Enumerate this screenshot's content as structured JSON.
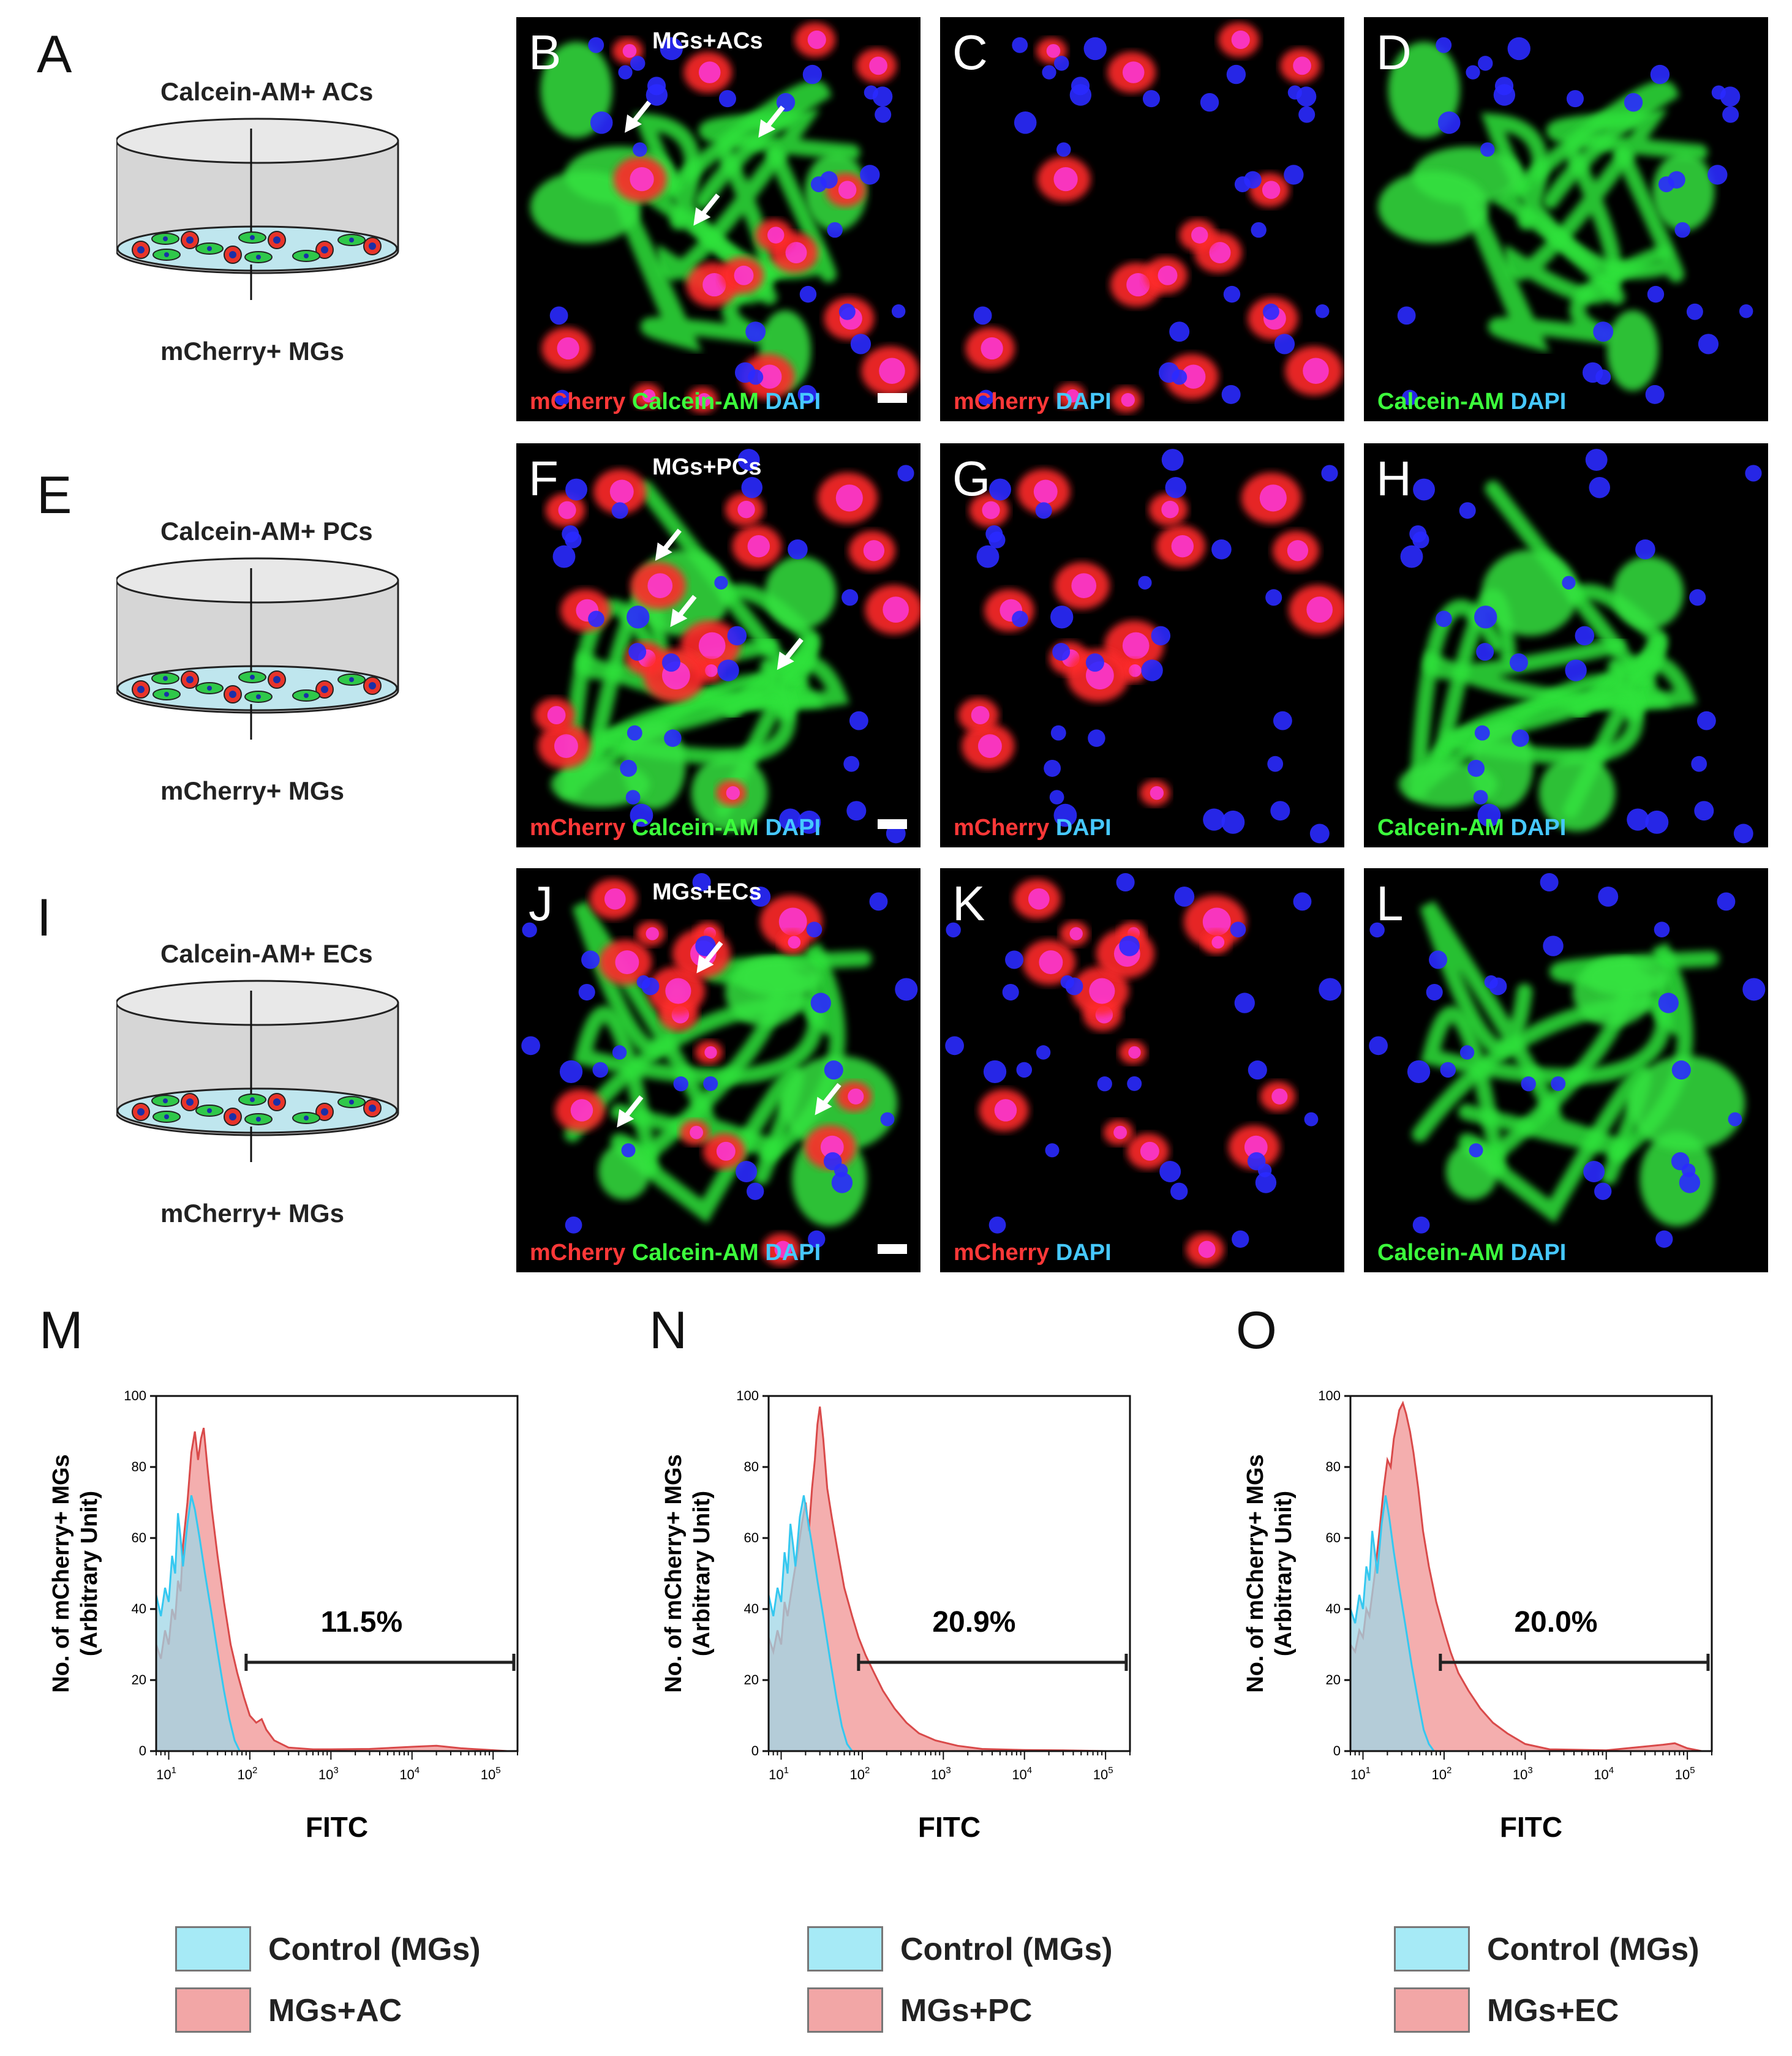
{
  "panel_letters": [
    "A",
    "B",
    "C",
    "D",
    "E",
    "F",
    "G",
    "H",
    "I",
    "J",
    "K",
    "L",
    "M",
    "N",
    "O"
  ],
  "rows": [
    {
      "dish": {
        "top_label": "Calcein-AM+ ACs",
        "bottom_label": "mCherry+ MGs"
      },
      "merge_title": "MGs+ACs",
      "captions": {
        "merge": [
          "mCherry",
          "Calcein-AM",
          "DAPI"
        ],
        "red": [
          "mCherry",
          "DAPI"
        ],
        "green": [
          "Calcein-AM",
          "DAPI"
        ]
      }
    },
    {
      "dish": {
        "top_label": "Calcein-AM+ PCs",
        "bottom_label": "mCherry+ MGs"
      },
      "merge_title": "MGs+PCs",
      "captions": {
        "merge": [
          "mCherry",
          "Calcein-AM",
          "DAPI"
        ],
        "red": [
          "mCherry",
          "DAPI"
        ],
        "green": [
          "Calcein-AM",
          "DAPI"
        ]
      }
    },
    {
      "dish": {
        "top_label": "Calcein-AM+ ECs",
        "bottom_label": "mCherry+ MGs"
      },
      "merge_title": "MGs+ECs",
      "captions": {
        "merge": [
          "mCherry",
          "Calcein-AM",
          "DAPI"
        ],
        "red": [
          "mCherry",
          "DAPI"
        ],
        "green": [
          "Calcein-AM",
          "DAPI"
        ]
      }
    }
  ],
  "colors": {
    "mcherry": "#ff3838",
    "calcein": "#3cff3c",
    "dapi": "#46c8ff",
    "control_fill": "#9fd6e6",
    "control_line": "#35c8f0",
    "sample_fill": "#f2a0a0",
    "sample_line": "#d94a4a"
  },
  "chart_data": [
    {
      "type": "area",
      "panel": "M",
      "xlabel": "FITC",
      "ylabel": "No. of mCherry+ MGs",
      "ylabel_sub": "(Arbitrary Unit)",
      "x_scale": "log",
      "xlim": [
        7,
        200000
      ],
      "ylim": [
        0,
        100
      ],
      "y_ticks": [
        0,
        20,
        40,
        60,
        80,
        100
      ],
      "x_ticks": [
        {
          "base": "10",
          "exp": "1",
          "value": 10
        },
        {
          "base": "10",
          "exp": "2",
          "value": 100
        },
        {
          "base": "10",
          "exp": "3",
          "value": 1000
        },
        {
          "base": "10",
          "exp": "4",
          "value": 10000
        },
        {
          "base": "10",
          "exp": "5",
          "value": 100000
        }
      ],
      "gate": {
        "label": "11.5%",
        "from": 90,
        "to": 180000,
        "y": 25
      },
      "series": [
        {
          "name": "Control (MGs)",
          "key": "control",
          "points": [
            [
              7,
              44
            ],
            [
              8,
              38
            ],
            [
              9,
              46
            ],
            [
              10,
              42
            ],
            [
              11,
              55
            ],
            [
              12,
              50
            ],
            [
              13,
              67
            ],
            [
              14,
              60
            ],
            [
              15,
              52
            ],
            [
              17,
              64
            ],
            [
              19,
              72
            ],
            [
              21,
              68
            ],
            [
              24,
              60
            ],
            [
              28,
              50
            ],
            [
              33,
              40
            ],
            [
              40,
              28
            ],
            [
              48,
              17
            ],
            [
              56,
              9
            ],
            [
              65,
              3
            ],
            [
              75,
              0
            ]
          ]
        },
        {
          "name": "MGs+AC",
          "key": "sample",
          "points": [
            [
              7,
              30
            ],
            [
              8,
              26
            ],
            [
              9,
              34
            ],
            [
              10,
              30
            ],
            [
              11,
              40
            ],
            [
              12,
              37
            ],
            [
              13,
              48
            ],
            [
              14,
              45
            ],
            [
              15,
              58
            ],
            [
              17,
              70
            ],
            [
              19,
              84
            ],
            [
              21,
              90
            ],
            [
              23,
              82
            ],
            [
              25,
              88
            ],
            [
              27,
              91
            ],
            [
              30,
              80
            ],
            [
              34,
              68
            ],
            [
              40,
              55
            ],
            [
              48,
              42
            ],
            [
              58,
              30
            ],
            [
              70,
              22
            ],
            [
              85,
              15
            ],
            [
              100,
              10
            ],
            [
              120,
              8
            ],
            [
              140,
              9
            ],
            [
              160,
              6
            ],
            [
              200,
              3
            ],
            [
              300,
              1
            ],
            [
              600,
              0.5
            ],
            [
              1000,
              0.5
            ],
            [
              3000,
              0.6
            ],
            [
              10000,
              1.2
            ],
            [
              20000,
              1.5
            ],
            [
              40000,
              0.8
            ],
            [
              80000,
              0.4
            ],
            [
              150000,
              0
            ]
          ]
        }
      ]
    },
    {
      "type": "area",
      "panel": "N",
      "xlabel": "FITC",
      "ylabel": "No. of mCherry+ MGs",
      "ylabel_sub": "(Arbitrary Unit)",
      "x_scale": "log",
      "xlim": [
        7,
        200000
      ],
      "ylim": [
        0,
        100
      ],
      "y_ticks": [
        0,
        20,
        40,
        60,
        80,
        100
      ],
      "x_ticks": [
        {
          "base": "10",
          "exp": "1",
          "value": 10
        },
        {
          "base": "10",
          "exp": "2",
          "value": 100
        },
        {
          "base": "10",
          "exp": "3",
          "value": 1000
        },
        {
          "base": "10",
          "exp": "4",
          "value": 10000
        },
        {
          "base": "10",
          "exp": "5",
          "value": 100000
        }
      ],
      "gate": {
        "label": "20.9%",
        "from": 90,
        "to": 180000,
        "y": 25
      },
      "series": [
        {
          "name": "Control (MGs)",
          "key": "control",
          "points": [
            [
              7,
              44
            ],
            [
              8,
              38
            ],
            [
              9,
              46
            ],
            [
              10,
              42
            ],
            [
              11,
              56
            ],
            [
              12,
              50
            ],
            [
              13,
              64
            ],
            [
              14,
              58
            ],
            [
              15,
              52
            ],
            [
              17,
              66
            ],
            [
              19,
              72
            ],
            [
              21,
              66
            ],
            [
              24,
              58
            ],
            [
              28,
              48
            ],
            [
              33,
              38
            ],
            [
              40,
              26
            ],
            [
              48,
              15
            ],
            [
              56,
              7
            ],
            [
              65,
              2
            ],
            [
              75,
              0
            ]
          ]
        },
        {
          "name": "MGs+PC",
          "key": "sample",
          "points": [
            [
              7,
              32
            ],
            [
              8,
              28
            ],
            [
              9,
              34
            ],
            [
              10,
              30
            ],
            [
              11,
              42
            ],
            [
              12,
              38
            ],
            [
              14,
              48
            ],
            [
              16,
              56
            ],
            [
              18,
              64
            ],
            [
              20,
              70
            ],
            [
              22,
              62
            ],
            [
              24,
              74
            ],
            [
              26,
              82
            ],
            [
              28,
              92
            ],
            [
              30,
              97
            ],
            [
              33,
              88
            ],
            [
              37,
              74
            ],
            [
              42,
              66
            ],
            [
              50,
              56
            ],
            [
              60,
              46
            ],
            [
              75,
              38
            ],
            [
              90,
              32
            ],
            [
              110,
              27
            ],
            [
              140,
              22
            ],
            [
              180,
              17
            ],
            [
              250,
              12
            ],
            [
              350,
              8
            ],
            [
              500,
              5
            ],
            [
              800,
              3
            ],
            [
              1500,
              1.5
            ],
            [
              3000,
              0.6
            ],
            [
              10000,
              0.3
            ],
            [
              30000,
              0.2
            ],
            [
              100000,
              0
            ]
          ]
        }
      ]
    },
    {
      "type": "area",
      "panel": "O",
      "xlabel": "FITC",
      "ylabel": "No. of mCherry+ MGs",
      "ylabel_sub": "(Arbitrary Unit)",
      "x_scale": "log",
      "xlim": [
        7,
        200000
      ],
      "ylim": [
        0,
        100
      ],
      "y_ticks": [
        0,
        20,
        40,
        60,
        80,
        100
      ],
      "x_ticks": [
        {
          "base": "10",
          "exp": "1",
          "value": 10
        },
        {
          "base": "10",
          "exp": "2",
          "value": 100
        },
        {
          "base": "10",
          "exp": "3",
          "value": 1000
        },
        {
          "base": "10",
          "exp": "4",
          "value": 10000
        },
        {
          "base": "10",
          "exp": "5",
          "value": 100000
        }
      ],
      "gate": {
        "label": "20.0%",
        "from": 90,
        "to": 180000,
        "y": 25
      },
      "series": [
        {
          "name": "Control (MGs)",
          "key": "control",
          "points": [
            [
              7,
              40
            ],
            [
              8,
              36
            ],
            [
              9,
              44
            ],
            [
              10,
              40
            ],
            [
              11,
              52
            ],
            [
              12,
              48
            ],
            [
              13,
              62
            ],
            [
              14,
              56
            ],
            [
              15,
              50
            ],
            [
              17,
              64
            ],
            [
              19,
              72
            ],
            [
              21,
              66
            ],
            [
              24,
              56
            ],
            [
              28,
              46
            ],
            [
              33,
              36
            ],
            [
              40,
              24
            ],
            [
              48,
              14
            ],
            [
              56,
              6
            ],
            [
              65,
              2
            ],
            [
              75,
              0
            ]
          ]
        },
        {
          "name": "MGs+EC",
          "key": "sample",
          "points": [
            [
              7,
              30
            ],
            [
              8,
              28
            ],
            [
              9,
              34
            ],
            [
              10,
              32
            ],
            [
              11,
              40
            ],
            [
              12,
              38
            ],
            [
              14,
              50
            ],
            [
              16,
              62
            ],
            [
              18,
              74
            ],
            [
              20,
              82
            ],
            [
              22,
              80
            ],
            [
              24,
              88
            ],
            [
              26,
              92
            ],
            [
              28,
              96
            ],
            [
              31,
              98
            ],
            [
              34,
              95
            ],
            [
              38,
              90
            ],
            [
              42,
              84
            ],
            [
              48,
              74
            ],
            [
              55,
              62
            ],
            [
              65,
              52
            ],
            [
              80,
              42
            ],
            [
              100,
              34
            ],
            [
              120,
              28
            ],
            [
              150,
              22
            ],
            [
              200,
              17
            ],
            [
              280,
              12
            ],
            [
              400,
              8
            ],
            [
              600,
              5
            ],
            [
              1000,
              2
            ],
            [
              2000,
              0.5
            ],
            [
              10000,
              0.2
            ],
            [
              50000,
              1.8
            ],
            [
              70000,
              2.2
            ],
            [
              100000,
              0.8
            ],
            [
              150000,
              0
            ]
          ]
        }
      ]
    }
  ],
  "legends": [
    [
      {
        "label": "Control (MGs)",
        "key": "control"
      },
      {
        "label": "MGs+AC",
        "key": "sample"
      }
    ],
    [
      {
        "label": "Control (MGs)",
        "key": "control"
      },
      {
        "label": "MGs+PC",
        "key": "sample"
      }
    ],
    [
      {
        "label": "Control (MGs)",
        "key": "control"
      },
      {
        "label": "MGs+EC",
        "key": "sample"
      }
    ]
  ]
}
